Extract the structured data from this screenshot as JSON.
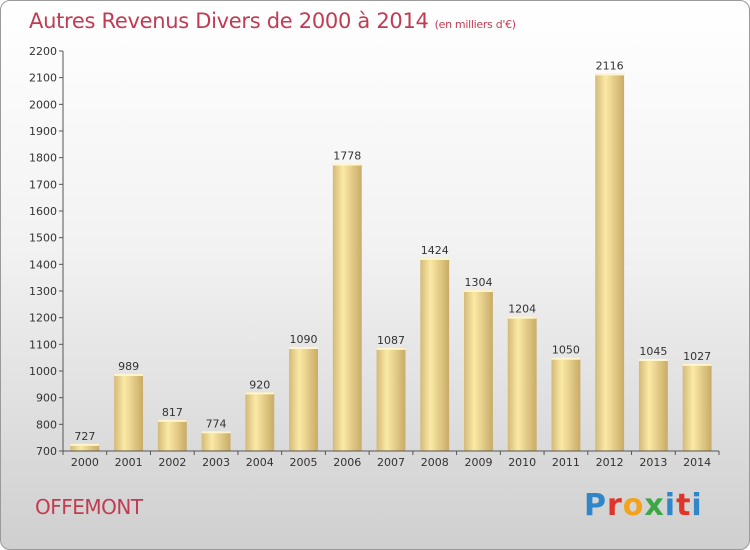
{
  "header": {
    "title": "Autres Revenus Divers de 2000 à 2014",
    "unit": "(en milliers d'€)"
  },
  "footer": {
    "town": "OFFEMONT",
    "logo": "Proxiti"
  },
  "colors": {
    "title": "#c23b52",
    "bar_light": "#fbe9a6",
    "bar_dark": "#cdb26e",
    "logo_letters": [
      "#2f86c9",
      "#e0342b",
      "#f2a31b",
      "#3aa845",
      "#2f86c9",
      "#e0342b",
      "#2f86c9"
    ]
  },
  "chart_data": {
    "type": "bar",
    "categories": [
      "2000",
      "2001",
      "2002",
      "2003",
      "2004",
      "2005",
      "2006",
      "2007",
      "2008",
      "2009",
      "2010",
      "2011",
      "2012",
      "2013",
      "2014"
    ],
    "values": [
      727,
      989,
      817,
      774,
      920,
      1090,
      1778,
      1087,
      1424,
      1304,
      1204,
      1050,
      2116,
      1045,
      1027
    ],
    "ylim": [
      700,
      2200
    ],
    "yticks": [
      700,
      800,
      900,
      1000,
      1100,
      1200,
      1300,
      1400,
      1500,
      1600,
      1700,
      1800,
      1900,
      2000,
      2100,
      2200
    ],
    "grid": false,
    "legend": "none"
  }
}
